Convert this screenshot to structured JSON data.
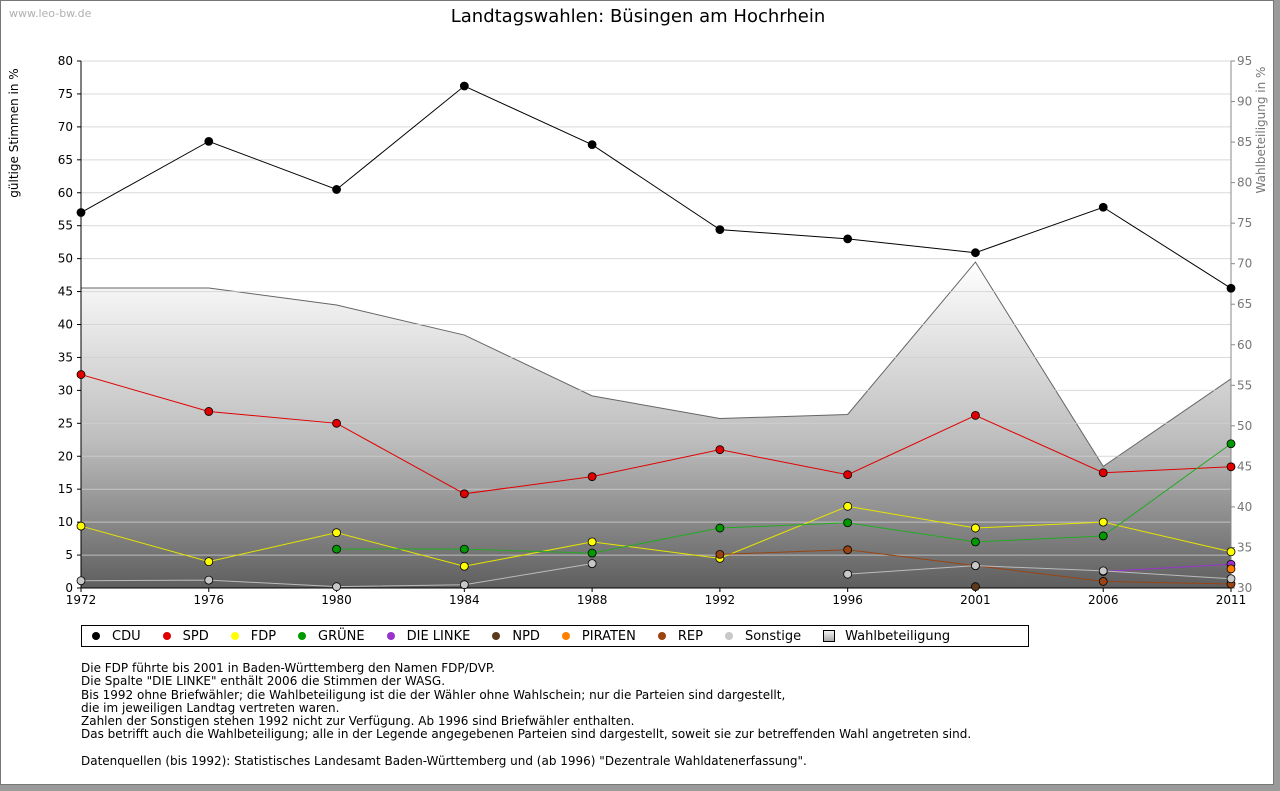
{
  "watermark": "www.leo-bw.de",
  "chart_data": {
    "type": "line",
    "title": "Landtagswahlen: Büsingen am Hochrhein",
    "ylabel": "gültige Stimmen in %",
    "y2label": "Wahlbeteiligung in %",
    "categories": [
      "1972",
      "1976",
      "1980",
      "1984",
      "1988",
      "1992",
      "1996",
      "2001",
      "2006",
      "2011"
    ],
    "ylim": [
      0,
      80
    ],
    "yticks": [
      0,
      5,
      10,
      15,
      20,
      25,
      30,
      35,
      40,
      45,
      50,
      55,
      60,
      65,
      70,
      75,
      80
    ],
    "y2lim": [
      30,
      95
    ],
    "y2ticks": [
      30,
      35,
      40,
      45,
      50,
      55,
      60,
      65,
      70,
      75,
      80,
      85,
      90,
      95
    ],
    "series": [
      {
        "name": "CDU",
        "color": "#000000",
        "values": [
          57.0,
          67.8,
          60.5,
          76.2,
          67.3,
          54.4,
          53.0,
          50.9,
          57.8,
          45.5
        ]
      },
      {
        "name": "SPD",
        "color": "#e00000",
        "values": [
          32.4,
          26.8,
          25.0,
          14.3,
          16.9,
          21.0,
          17.2,
          26.2,
          17.5,
          18.4
        ]
      },
      {
        "name": "FDP",
        "color": "#ffff00",
        "lineColor": "#e6e600",
        "values": [
          9.4,
          4.0,
          8.4,
          3.3,
          7.0,
          4.5,
          12.4,
          9.1,
          10.0,
          5.5
        ]
      },
      {
        "name": "GRÜNE",
        "color": "#009900",
        "lineColor": "#22aa22",
        "values": [
          null,
          null,
          5.9,
          5.9,
          5.3,
          9.1,
          9.9,
          7.0,
          7.9,
          21.9
        ]
      },
      {
        "name": "DIE LINKE",
        "color": "#9933cc",
        "values": [
          null,
          null,
          null,
          null,
          null,
          null,
          null,
          null,
          2.5,
          3.6
        ]
      },
      {
        "name": "NPD",
        "color": "#5a3a1a",
        "values": [
          null,
          null,
          null,
          null,
          null,
          null,
          null,
          null,
          null,
          null
        ]
      },
      {
        "name": "PIRATEN",
        "color": "#ff7f00",
        "values": [
          null,
          null,
          null,
          null,
          null,
          null,
          null,
          null,
          null,
          2.9
        ]
      },
      {
        "name": "REP",
        "color": "#994411",
        "values": [
          null,
          null,
          null,
          null,
          null,
          5.1,
          5.8,
          3.4,
          1.0,
          0.6
        ]
      },
      {
        "name": "Sonstige",
        "color": "#c8c8c8",
        "lineColor": "#bbbbbb",
        "values": [
          1.1,
          1.2,
          0.2,
          0.5,
          3.7,
          null,
          2.1,
          3.4,
          2.6,
          1.4
        ]
      }
    ],
    "npd_points": [
      {
        "year": "2001",
        "value": 0.2
      }
    ],
    "turnout": {
      "name": "Wahlbeteiligung",
      "values": [
        67.0,
        67.0,
        64.9,
        61.2,
        53.7,
        50.9,
        51.4,
        70.2,
        45.0,
        55.8
      ]
    }
  },
  "legend": [
    {
      "label": "CDU",
      "color": "#000000",
      "type": "dot"
    },
    {
      "label": "SPD",
      "color": "#e00000",
      "type": "dot"
    },
    {
      "label": "FDP",
      "color": "#ffff00",
      "type": "dot"
    },
    {
      "label": "GRÜNE",
      "color": "#009900",
      "type": "dot"
    },
    {
      "label": "DIE LINKE",
      "color": "#9933cc",
      "type": "dot"
    },
    {
      "label": "NPD",
      "color": "#5a3a1a",
      "type": "dot"
    },
    {
      "label": "PIRATEN",
      "color": "#ff7f00",
      "type": "dot"
    },
    {
      "label": "REP",
      "color": "#994411",
      "type": "dot"
    },
    {
      "label": "Sonstige",
      "color": "#c8c8c8",
      "type": "dot"
    },
    {
      "label": "Wahlbeteiligung",
      "color": "#bbbbbb",
      "type": "square"
    }
  ],
  "notes": [
    "Die FDP führte bis 2001 in Baden-Württemberg den Namen FDP/DVP.",
    "Die Spalte \"DIE LINKE\" enthält 2006 die Stimmen der WASG.",
    "Bis 1992 ohne Briefwähler; die Wahlbeteiligung ist die der Wähler ohne Wahlschein; nur die Parteien sind dargestellt,",
    "die im jeweiligen Landtag vertreten waren.",
    "Zahlen der Sonstigen stehen 1992 nicht zur Verfügung. Ab 1996 sind Briefwähler enthalten.",
    "Das betrifft auch die Wahlbeteiligung; alle in der Legende angegebenen Parteien sind dargestellt, soweit sie zur betreffenden Wahl angetreten sind."
  ],
  "source": "Datenquellen (bis 1992): Statistisches Landesamt Baden-Württemberg und (ab 1996) \"Dezentrale Wahldatenerfassung\"."
}
